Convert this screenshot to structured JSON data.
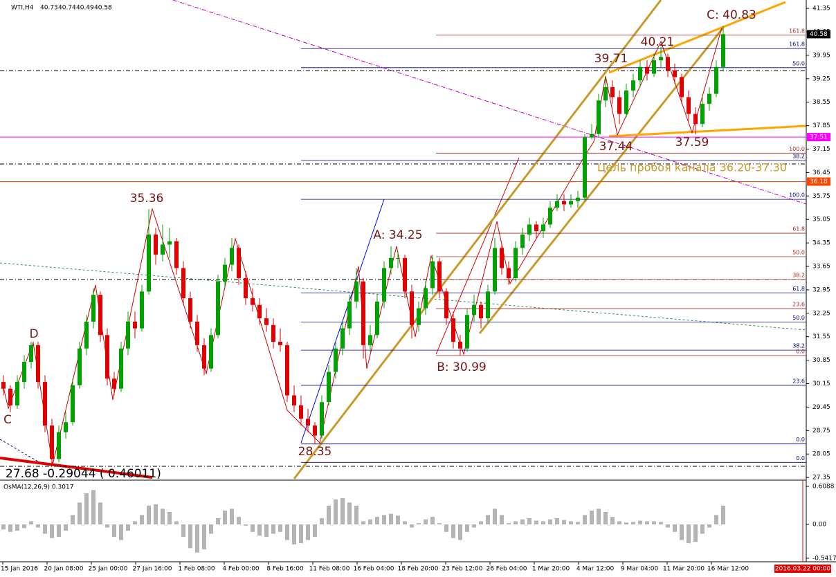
{
  "chart_data": {
    "type": "candlestick",
    "symbol": "WTI,H4",
    "quote": [
      40.73,
      40.74,
      40.49,
      40.58
    ],
    "ylim": [
      27.27,
      41.6
    ],
    "yticks": [
      41.35,
      40.65,
      39.95,
      39.25,
      38.55,
      37.85,
      37.15,
      36.45,
      35.75,
      35.05,
      34.35,
      33.65,
      32.95,
      32.25,
      31.55,
      30.85,
      30.15,
      29.45,
      28.75,
      28.05,
      27.35
    ],
    "time_labels": [
      "15 Jan 2016",
      "20 Jan 08:00",
      "25 Jan 00:00",
      "27 Jan 16:00",
      "1 Feb 08:00",
      "4 Feb 00:00",
      "8 Feb 16:00",
      "11 Feb 08:00",
      "16 Feb 04:00",
      "18 Feb 20:00",
      "23 Feb 12:00",
      "26 Feb 04:00",
      "1 Mar 20:00",
      "4 Mar 12:00",
      "9 Mar 04:00",
      "11 Mar 20:00",
      "16 Mar 12:00"
    ],
    "cursor_time": "2016.03.22 00:00",
    "up_color": "#00a000",
    "down_color": "#e00000",
    "ohlc": [
      [
        30.2,
        30.4,
        29.8,
        30.0
      ],
      [
        30.0,
        30.1,
        29.3,
        29.5
      ],
      [
        29.5,
        30.4,
        29.4,
        30.2
      ],
      [
        30.2,
        31.0,
        30.0,
        30.8
      ],
      [
        30.8,
        31.4,
        30.6,
        31.3
      ],
      [
        31.3,
        31.4,
        30.0,
        30.2
      ],
      [
        30.2,
        30.4,
        28.7,
        28.9
      ],
      [
        28.9,
        29.1,
        27.68,
        27.9
      ],
      [
        27.9,
        28.9,
        27.8,
        28.7
      ],
      [
        28.7,
        29.3,
        28.5,
        29.0
      ],
      [
        29.0,
        30.3,
        28.9,
        30.1
      ],
      [
        30.1,
        31.4,
        30.0,
        31.2
      ],
      [
        31.2,
        32.2,
        31.0,
        32.0
      ],
      [
        32.0,
        33.0,
        31.8,
        32.8
      ],
      [
        32.8,
        32.9,
        31.4,
        31.6
      ],
      [
        31.6,
        31.8,
        30.1,
        30.3
      ],
      [
        30.3,
        30.5,
        29.8,
        30.0
      ],
      [
        30.0,
        31.4,
        29.9,
        31.2
      ],
      [
        31.2,
        32.3,
        31.0,
        32.0
      ],
      [
        32.0,
        32.3,
        31.5,
        31.8
      ],
      [
        31.8,
        33.1,
        31.7,
        32.9
      ],
      [
        32.9,
        35.36,
        32.8,
        34.6
      ],
      [
        34.6,
        34.8,
        33.7,
        34.0
      ],
      [
        34.0,
        34.9,
        33.8,
        34.3
      ],
      [
        34.3,
        34.8,
        33.9,
        34.4
      ],
      [
        34.4,
        34.5,
        33.4,
        33.6
      ],
      [
        33.6,
        33.8,
        32.5,
        32.7
      ],
      [
        32.7,
        32.9,
        31.8,
        32.0
      ],
      [
        32.0,
        32.2,
        31.1,
        31.3
      ],
      [
        31.3,
        31.5,
        30.4,
        30.6
      ],
      [
        30.6,
        31.8,
        30.5,
        31.6
      ],
      [
        31.6,
        33.4,
        31.5,
        33.2
      ],
      [
        33.2,
        33.9,
        33.0,
        33.7
      ],
      [
        33.7,
        34.5,
        33.5,
        34.2
      ],
      [
        34.2,
        34.3,
        33.1,
        33.3
      ],
      [
        33.3,
        33.5,
        32.5,
        32.7
      ],
      [
        32.7,
        33.0,
        32.3,
        32.5
      ],
      [
        32.5,
        32.7,
        31.9,
        32.1
      ],
      [
        32.1,
        32.4,
        31.7,
        31.9
      ],
      [
        31.9,
        32.1,
        31.2,
        31.4
      ],
      [
        31.4,
        31.8,
        31.1,
        31.3
      ],
      [
        31.3,
        31.4,
        29.6,
        29.8
      ],
      [
        29.8,
        30.1,
        29.3,
        29.5
      ],
      [
        29.5,
        29.8,
        28.9,
        29.1
      ],
      [
        29.1,
        29.4,
        28.7,
        28.9
      ],
      [
        28.9,
        29.0,
        28.35,
        28.6
      ],
      [
        28.6,
        29.8,
        28.5,
        29.6
      ],
      [
        29.6,
        30.7,
        29.5,
        30.5
      ],
      [
        30.5,
        31.4,
        30.3,
        31.2
      ],
      [
        31.2,
        32.0,
        31.0,
        31.8
      ],
      [
        31.8,
        32.8,
        31.6,
        32.6
      ],
      [
        32.6,
        33.6,
        32.4,
        33.2
      ],
      [
        33.2,
        33.3,
        30.9,
        31.3
      ],
      [
        31.3,
        31.9,
        31.1,
        31.6
      ],
      [
        31.6,
        32.8,
        31.5,
        32.6
      ],
      [
        32.6,
        33.8,
        32.4,
        33.6
      ],
      [
        33.6,
        34.25,
        33.4,
        33.9
      ],
      [
        33.9,
        34.1,
        33.6,
        33.9
      ],
      [
        33.9,
        34.0,
        32.7,
        32.9
      ],
      [
        32.9,
        33.1,
        31.5,
        31.9
      ],
      [
        31.9,
        32.6,
        31.7,
        32.4
      ],
      [
        32.4,
        33.2,
        32.2,
        33.0
      ],
      [
        33.0,
        34.0,
        32.8,
        33.8
      ],
      [
        33.8,
        33.9,
        32.7,
        32.9
      ],
      [
        32.9,
        33.0,
        31.9,
        32.1
      ],
      [
        32.1,
        32.3,
        31.2,
        31.4
      ],
      [
        31.4,
        31.6,
        30.99,
        31.2
      ],
      [
        31.2,
        32.4,
        31.1,
        32.2
      ],
      [
        32.2,
        32.8,
        32.0,
        32.5
      ],
      [
        32.5,
        32.6,
        31.8,
        32.1
      ],
      [
        32.1,
        33.1,
        32.0,
        32.9
      ],
      [
        32.9,
        34.5,
        32.8,
        34.2
      ],
      [
        34.2,
        34.3,
        33.4,
        33.6
      ],
      [
        33.6,
        33.8,
        33.1,
        33.3
      ],
      [
        33.3,
        34.4,
        33.2,
        34.2
      ],
      [
        34.2,
        34.8,
        34.0,
        34.6
      ],
      [
        34.6,
        35.1,
        34.4,
        34.9
      ],
      [
        34.9,
        35.0,
        34.5,
        34.7
      ],
      [
        34.7,
        35.1,
        34.5,
        34.9
      ],
      [
        34.9,
        35.6,
        34.8,
        35.4
      ],
      [
        35.4,
        35.8,
        35.3,
        35.6
      ],
      [
        35.6,
        35.8,
        35.3,
        35.5
      ],
      [
        35.5,
        35.8,
        35.4,
        35.6
      ],
      [
        35.6,
        35.9,
        35.4,
        35.7
      ],
      [
        35.7,
        37.6,
        35.6,
        37.5
      ],
      [
        37.5,
        37.9,
        37.44,
        37.6
      ],
      [
        37.6,
        38.8,
        37.5,
        38.6
      ],
      [
        38.6,
        39.3,
        38.4,
        39.0
      ],
      [
        39.0,
        39.2,
        38.5,
        38.7
      ],
      [
        38.7,
        38.9,
        37.9,
        38.2
      ],
      [
        38.2,
        39.1,
        38.1,
        38.9
      ],
      [
        38.9,
        39.4,
        38.7,
        39.2
      ],
      [
        39.2,
        39.8,
        39.0,
        39.6
      ],
      [
        39.6,
        39.8,
        39.2,
        39.4
      ],
      [
        39.4,
        40.0,
        39.3,
        39.8
      ],
      [
        39.8,
        40.21,
        39.6,
        39.9
      ],
      [
        39.9,
        40.0,
        39.3,
        39.5
      ],
      [
        39.5,
        39.7,
        39.1,
        39.3
      ],
      [
        39.3,
        39.4,
        38.5,
        38.7
      ],
      [
        38.7,
        38.9,
        38.0,
        38.2
      ],
      [
        38.2,
        38.4,
        37.59,
        37.9
      ],
      [
        37.9,
        38.7,
        37.8,
        38.5
      ],
      [
        38.5,
        39.0,
        38.3,
        38.8
      ],
      [
        38.8,
        39.8,
        38.7,
        39.6
      ],
      [
        39.6,
        40.83,
        39.5,
        40.58
      ]
    ],
    "price_lines": [
      {
        "value": 40.58,
        "color": "#000000"
      },
      {
        "value": 37.51,
        "color": "#ff00ff"
      },
      {
        "value": 36.18,
        "color": "#ff4500"
      }
    ],
    "fib_blue": {
      "color": "#00008b",
      "levels": [
        {
          "label": "161.8",
          "value": 40.15
        },
        {
          "label": "50.0",
          "value": 39.58
        },
        {
          "label": "38.2",
          "value": 36.81
        },
        {
          "label": "100.0",
          "value": 35.65
        },
        {
          "label": "61.8",
          "value": 32.86
        },
        {
          "label": "50.0",
          "value": 31.99
        },
        {
          "label": "38.2",
          "value": 31.15
        },
        {
          "label": "23.6",
          "value": 30.1
        },
        {
          "label": "0.0",
          "value": 28.35
        },
        {
          "label": "0.0",
          "value": 27.8
        }
      ]
    },
    "fib_red": {
      "color": "#a52a2a",
      "levels": [
        {
          "label": "161.8",
          "value": 40.55
        },
        {
          "label": "100.0",
          "value": 37.03
        },
        {
          "label": "61.8",
          "value": 34.64
        },
        {
          "label": "50.0",
          "value": 33.94
        },
        {
          "label": "38.2",
          "value": 33.26
        },
        {
          "label": "23.6",
          "value": 32.39
        },
        {
          "label": "0.0",
          "value": 30.99
        }
      ]
    },
    "annotations": [
      "35.36",
      "28.35",
      "A: 34.25",
      "B: 30.99",
      "C: 40.83",
      "39.71",
      "40.21",
      "37.44",
      "37.59",
      "C",
      "D"
    ],
    "info_text": "27.68 -0.29044 ( 0.46011)",
    "target_text": "Цель пробоя канала 36.20-37.30",
    "osma": {
      "title": "OsMA(12,26,9) 0.3017",
      "color": "#b4b4b4",
      "ylim": [
        -0.598,
        0.686
      ],
      "yticks": [
        0.6088,
        {
          "value": 0,
          "label": "0.00"
        },
        -0.5417
      ],
      "values": [
        -0.08,
        -0.12,
        -0.1,
        -0.06,
        0.05,
        -0.05,
        -0.15,
        -0.22,
        -0.2,
        -0.1,
        0.15,
        0.35,
        0.5,
        0.55,
        0.35,
        -0.05,
        -0.2,
        -0.25,
        -0.1,
        0.05,
        0.15,
        0.3,
        0.32,
        0.25,
        0.2,
        0.05,
        -0.2,
        -0.38,
        -0.45,
        -0.4,
        -0.15,
        0.1,
        0.22,
        0.25,
        0.12,
        -0.02,
        -0.12,
        -0.18,
        -0.2,
        -0.15,
        -0.12,
        -0.25,
        -0.32,
        -0.3,
        -0.25,
        -0.2,
        0.1,
        0.3,
        0.4,
        0.42,
        0.35,
        0.3,
        0.05,
        0.08,
        0.12,
        0.15,
        0.17,
        0.14,
        0.05,
        -0.05,
        0.02,
        0.08,
        0.12,
        0.02,
        -0.12,
        -0.22,
        -0.25,
        -0.12,
        -0.05,
        0.05,
        0.15,
        0.25,
        0.15,
        0.02,
        0.05,
        0.08,
        0.1,
        0.06,
        0.05,
        0.08,
        0.1,
        0.07,
        0.05,
        0.04,
        0.15,
        0.22,
        0.25,
        0.2,
        0.12,
        0.05,
        0.03,
        0.04,
        0.06,
        0.05,
        0.05,
        0.04,
        -0.05,
        -0.12,
        -0.25,
        -0.3,
        -0.28,
        -0.15,
        -0.05,
        0.15,
        0.3
      ]
    }
  }
}
